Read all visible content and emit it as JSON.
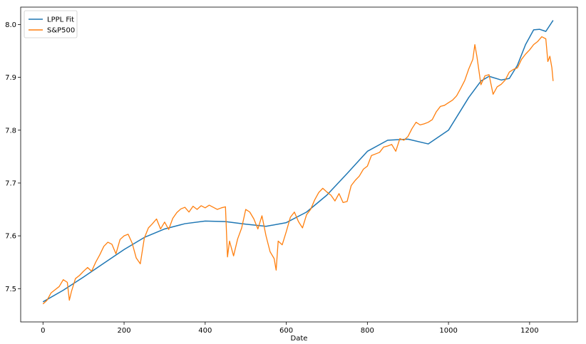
{
  "chart_data": {
    "type": "line",
    "title": "",
    "xlabel": "Date",
    "ylabel": "",
    "xlim": [
      -55,
      1318
    ],
    "ylim": [
      7.437,
      8.033
    ],
    "xticks": [
      0,
      200,
      400,
      600,
      800,
      1000,
      1200
    ],
    "yticks": [
      7.5,
      7.6,
      7.7,
      7.8,
      7.9,
      8.0
    ],
    "xtick_labels": [
      "0",
      "200",
      "400",
      "600",
      "800",
      "1000",
      "1200"
    ],
    "ytick_labels": [
      "7.5",
      "7.6",
      "7.7",
      "7.8",
      "7.9",
      "8.0"
    ],
    "grid": false,
    "legend": "top-left",
    "series": [
      {
        "name": "LPPL Fit",
        "color": "#1f77b4",
        "x": [
          0,
          50,
          100,
          150,
          200,
          250,
          300,
          350,
          400,
          450,
          500,
          550,
          600,
          650,
          700,
          750,
          800,
          850,
          900,
          950,
          1000,
          1050,
          1080,
          1100,
          1130,
          1150,
          1170,
          1190,
          1210,
          1225,
          1240,
          1258
        ],
        "y": [
          7.475,
          7.497,
          7.522,
          7.548,
          7.574,
          7.597,
          7.613,
          7.623,
          7.628,
          7.627,
          7.622,
          7.618,
          7.625,
          7.645,
          7.677,
          7.718,
          7.76,
          7.781,
          7.783,
          7.774,
          7.8,
          7.862,
          7.893,
          7.902,
          7.895,
          7.898,
          7.923,
          7.962,
          7.99,
          7.991,
          7.987,
          8.008
        ]
      },
      {
        "name": "S&P500",
        "color": "#ff7f0e",
        "x": [
          0,
          10,
          20,
          30,
          40,
          50,
          60,
          65,
          70,
          80,
          90,
          100,
          110,
          120,
          130,
          140,
          150,
          160,
          170,
          180,
          190,
          200,
          210,
          220,
          230,
          240,
          250,
          260,
          270,
          280,
          290,
          300,
          310,
          320,
          330,
          340,
          350,
          360,
          370,
          380,
          390,
          400,
          410,
          420,
          430,
          440,
          450,
          455,
          460,
          470,
          480,
          490,
          500,
          510,
          520,
          530,
          540,
          550,
          560,
          570,
          575,
          580,
          590,
          600,
          610,
          620,
          630,
          640,
          650,
          660,
          670,
          680,
          690,
          700,
          710,
          720,
          730,
          740,
          750,
          760,
          770,
          780,
          790,
          800,
          810,
          820,
          830,
          840,
          850,
          860,
          870,
          880,
          890,
          900,
          910,
          920,
          930,
          940,
          950,
          960,
          970,
          980,
          990,
          1000,
          1010,
          1020,
          1030,
          1040,
          1050,
          1060,
          1065,
          1070,
          1080,
          1090,
          1100,
          1110,
          1120,
          1130,
          1140,
          1150,
          1160,
          1170,
          1180,
          1190,
          1200,
          1210,
          1220,
          1230,
          1240,
          1245,
          1250,
          1255,
          1258
        ],
        "y": [
          7.471,
          7.478,
          7.492,
          7.498,
          7.504,
          7.517,
          7.512,
          7.478,
          7.494,
          7.519,
          7.525,
          7.533,
          7.54,
          7.533,
          7.55,
          7.564,
          7.58,
          7.588,
          7.584,
          7.566,
          7.593,
          7.6,
          7.603,
          7.586,
          7.558,
          7.547,
          7.596,
          7.615,
          7.623,
          7.632,
          7.613,
          7.626,
          7.612,
          7.633,
          7.644,
          7.651,
          7.654,
          7.645,
          7.656,
          7.65,
          7.657,
          7.653,
          7.658,
          7.654,
          7.65,
          7.653,
          7.655,
          7.56,
          7.59,
          7.562,
          7.594,
          7.615,
          7.65,
          7.645,
          7.632,
          7.613,
          7.638,
          7.6,
          7.57,
          7.557,
          7.535,
          7.59,
          7.583,
          7.608,
          7.635,
          7.645,
          7.627,
          7.615,
          7.64,
          7.65,
          7.668,
          7.682,
          7.69,
          7.683,
          7.677,
          7.666,
          7.68,
          7.663,
          7.665,
          7.695,
          7.705,
          7.713,
          7.726,
          7.732,
          7.752,
          7.755,
          7.758,
          7.768,
          7.77,
          7.773,
          7.76,
          7.784,
          7.781,
          7.788,
          7.803,
          7.815,
          7.81,
          7.812,
          7.815,
          7.82,
          7.835,
          7.845,
          7.847,
          7.852,
          7.857,
          7.865,
          7.879,
          7.894,
          7.916,
          7.934,
          7.962,
          7.94,
          7.886,
          7.903,
          7.905,
          7.868,
          7.882,
          7.887,
          7.895,
          7.91,
          7.915,
          7.918,
          7.934,
          7.944,
          7.952,
          7.962,
          7.968,
          7.977,
          7.973,
          7.93,
          7.94,
          7.918,
          7.893
        ]
      }
    ]
  }
}
